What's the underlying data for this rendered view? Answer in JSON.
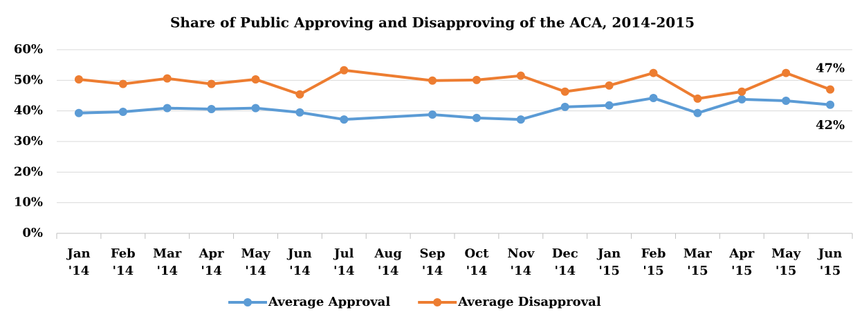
{
  "chart_data": {
    "type": "line",
    "title": "Share of Public Approving and Disapproving of the ACA, 2014-2015",
    "categories": [
      [
        "Jan",
        "'14"
      ],
      [
        "Feb",
        "'14"
      ],
      [
        "Mar",
        "'14"
      ],
      [
        "Apr",
        "'14"
      ],
      [
        "May",
        "'14"
      ],
      [
        "Jun",
        "'14"
      ],
      [
        "Jul",
        "'14"
      ],
      [
        "Aug",
        "'14"
      ],
      [
        "Sep",
        "'14"
      ],
      [
        "Oct",
        "'14"
      ],
      [
        "Nov",
        "'14"
      ],
      [
        "Dec",
        "'14"
      ],
      [
        "Jan",
        "'15"
      ],
      [
        "Feb",
        "'15"
      ],
      [
        "Mar",
        "'15"
      ],
      [
        "Apr",
        "'15"
      ],
      [
        "May",
        "'15"
      ],
      [
        "Jun",
        "'15"
      ]
    ],
    "series": [
      {
        "name": "Average Approval",
        "color": "#5b9bd5",
        "values": [
          39.3,
          39.7,
          40.9,
          40.6,
          40.9,
          39.5,
          37.2,
          null,
          38.8,
          37.7,
          37.2,
          41.3,
          41.8,
          44.2,
          39.3,
          43.8,
          43.3,
          42.0
        ],
        "value_labels": [
          null,
          null,
          null,
          null,
          null,
          null,
          null,
          null,
          null,
          null,
          null,
          null,
          null,
          null,
          null,
          null,
          null,
          "42%"
        ]
      },
      {
        "name": "Average Disapproval",
        "color": "#ed7d31",
        "values": [
          50.3,
          48.8,
          50.6,
          48.8,
          50.3,
          45.4,
          53.3,
          null,
          49.9,
          50.1,
          51.5,
          46.3,
          48.3,
          52.4,
          44.0,
          46.3,
          52.4,
          47.0
        ],
        "value_labels": [
          null,
          null,
          null,
          null,
          null,
          null,
          null,
          null,
          null,
          null,
          null,
          null,
          null,
          null,
          null,
          null,
          null,
          "47%"
        ]
      }
    ],
    "ylim": [
      0,
      60
    ],
    "yticks": [
      {
        "value": 0,
        "label": "0%"
      },
      {
        "value": 10,
        "label": "10%"
      },
      {
        "value": 20,
        "label": "20%"
      },
      {
        "value": 30,
        "label": "30%"
      },
      {
        "value": 40,
        "label": "40%"
      },
      {
        "value": 50,
        "label": "50%"
      },
      {
        "value": 60,
        "label": "60%"
      }
    ],
    "grid": true,
    "legend": "bottom"
  }
}
